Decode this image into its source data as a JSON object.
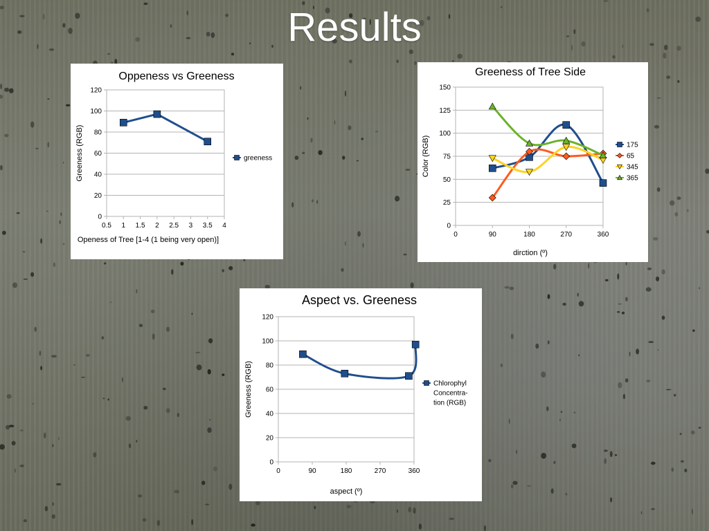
{
  "slide": {
    "title": "Results"
  },
  "chart_data": [
    {
      "id": "openness",
      "type": "line",
      "title": "Oppeness vs Greeness",
      "xlabel": "Openess of Tree [1-4 (1 being very open)]",
      "ylabel": "Greeness (RGB)",
      "xlim": [
        0.5,
        4
      ],
      "xticks": [
        "0.5",
        "1",
        "1.5",
        "2",
        "2.5",
        "3",
        "3.5",
        "4"
      ],
      "ylim": [
        0,
        120
      ],
      "yticks": [
        "0",
        "20",
        "40",
        "60",
        "80",
        "100",
        "120"
      ],
      "grid": true,
      "legend_position": "right",
      "series": [
        {
          "name": "greeness",
          "color": "#1f4e8c",
          "marker": "square",
          "smooth": false,
          "x": [
            1,
            2,
            3.5
          ],
          "y": [
            89,
            97,
            71
          ]
        }
      ]
    },
    {
      "id": "treeside",
      "type": "line",
      "title": "Greeness of Tree Side",
      "xlabel": "dirction (º)",
      "ylabel": "Color (RGB)",
      "xlim": [
        0,
        360
      ],
      "xticks": [
        "0",
        "90",
        "180",
        "270",
        "360"
      ],
      "ylim": [
        0,
        150
      ],
      "yticks": [
        "0",
        "25",
        "50",
        "75",
        "100",
        "125",
        "150"
      ],
      "grid": true,
      "legend_position": "right",
      "series": [
        {
          "name": "175",
          "color": "#1f4e8c",
          "marker": "square",
          "smooth": true,
          "x": [
            90,
            180,
            270,
            360
          ],
          "y": [
            62,
            74,
            109,
            46
          ]
        },
        {
          "name": "65",
          "color": "#ff5a1f",
          "marker": "diamond",
          "smooth": true,
          "x": [
            90,
            180,
            270,
            360
          ],
          "y": [
            30,
            80,
            75,
            78
          ]
        },
        {
          "name": "345",
          "color": "#ffd21f",
          "marker": "triangle-down",
          "smooth": true,
          "x": [
            90,
            180,
            270,
            360
          ],
          "y": [
            73,
            58,
            85,
            71
          ]
        },
        {
          "name": "365",
          "color": "#6bb22b",
          "marker": "triangle-up",
          "smooth": true,
          "x": [
            90,
            180,
            270,
            360
          ],
          "y": [
            129,
            89,
            92,
            76
          ]
        }
      ]
    },
    {
      "id": "aspect",
      "type": "line",
      "title": "Aspect vs. Greeness",
      "xlabel": "aspect (º)",
      "ylabel": "Greeness (RGB)",
      "xlim": [
        0,
        360
      ],
      "xticks": [
        "0",
        "90",
        "180",
        "270",
        "360"
      ],
      "ylim": [
        0,
        120
      ],
      "yticks": [
        "0",
        "20",
        "40",
        "60",
        "80",
        "100",
        "120"
      ],
      "grid": true,
      "legend_position": "right",
      "series": [
        {
          "name": "Chlorophyl Concentra-tion (RGB)",
          "legend_lines": [
            "Chlorophyl",
            "Concentra-",
            "tion (RGB)"
          ],
          "color": "#1f4e8c",
          "marker": "square",
          "smooth": true,
          "x": [
            65,
            176,
            346,
            364
          ],
          "y": [
            89,
            73,
            71,
            97
          ]
        }
      ]
    }
  ]
}
